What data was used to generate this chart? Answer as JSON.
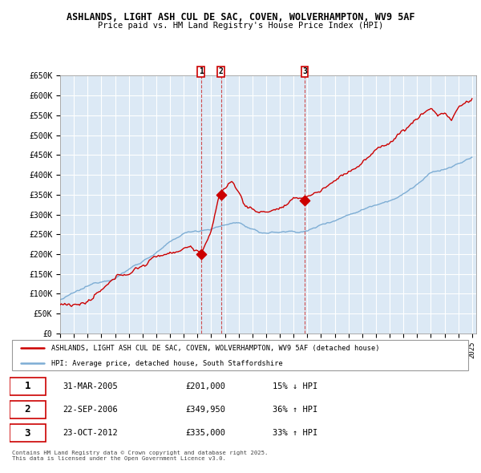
{
  "title1": "ASHLANDS, LIGHT ASH CUL DE SAC, COVEN, WOLVERHAMPTON, WV9 5AF",
  "title2": "Price paid vs. HM Land Registry's House Price Index (HPI)",
  "ylabel_ticks": [
    "£0",
    "£50K",
    "£100K",
    "£150K",
    "£200K",
    "£250K",
    "£300K",
    "£350K",
    "£400K",
    "£450K",
    "£500K",
    "£550K",
    "£600K",
    "£650K"
  ],
  "ytick_values": [
    0,
    50000,
    100000,
    150000,
    200000,
    250000,
    300000,
    350000,
    400000,
    450000,
    500000,
    550000,
    600000,
    650000
  ],
  "x_start_year": 1995,
  "x_end_year": 2025,
  "legend_line1": "ASHLANDS, LIGHT ASH CUL DE SAC, COVEN, WOLVERHAMPTON, WV9 5AF (detached house)",
  "legend_line2": "HPI: Average price, detached house, South Staffordshire",
  "sale1_date": "31-MAR-2005",
  "sale1_price": "£201,000",
  "sale1_hpi": "15% ↓ HPI",
  "sale1_year": 2005.25,
  "sale1_value": 201000,
  "sale2_date": "22-SEP-2006",
  "sale2_price": "£349,950",
  "sale2_hpi": "36% ↑ HPI",
  "sale2_year": 2006.72,
  "sale2_value": 349950,
  "sale3_date": "23-OCT-2012",
  "sale3_price": "£335,000",
  "sale3_hpi": "33% ↑ HPI",
  "sale3_year": 2012.81,
  "sale3_value": 335000,
  "footer": "Contains HM Land Registry data © Crown copyright and database right 2025.\nThis data is licensed under the Open Government Licence v3.0.",
  "line_color_red": "#cc0000",
  "line_color_blue": "#7dadd4",
  "bg_color": "#ffffff",
  "chart_bg_color": "#dce9f5",
  "grid_color": "#ffffff"
}
